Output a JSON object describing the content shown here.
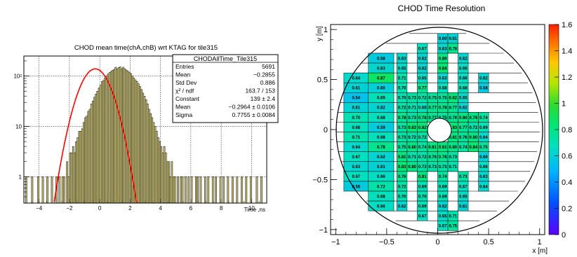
{
  "chart_data": [
    {
      "type": "histogram",
      "title": "CHOD mean time(chA,chB) wrt KTAG for tile315",
      "xlabel": "Time ,ns",
      "ylabel": "",
      "y_scale": "log",
      "xlim": [
        -5,
        11
      ],
      "ylim": [
        0.3,
        250
      ],
      "x_ticks": [
        "−4",
        "−2",
        "0",
        "2",
        "4",
        "6",
        "8",
        "10"
      ],
      "y_ticks": [
        "1",
        "10",
        "10²"
      ],
      "grid": true,
      "bin_width": 0.1,
      "bin_start": -5,
      "counts": [
        0,
        1,
        0,
        0,
        0,
        1,
        0,
        0,
        0,
        1,
        0,
        0,
        1,
        0,
        0,
        1,
        0,
        0,
        1,
        0,
        0,
        1,
        0,
        1,
        0,
        1,
        1,
        0,
        2,
        1,
        3,
        3,
        4,
        3,
        5,
        6,
        8,
        8,
        9,
        12,
        15,
        16,
        20,
        22,
        28,
        32,
        38,
        44,
        50,
        58,
        66,
        78,
        82,
        92,
        100,
        110,
        118,
        124,
        130,
        136,
        150,
        140,
        148,
        152,
        138,
        150,
        140,
        132,
        126,
        118,
        112,
        100,
        92,
        84,
        78,
        70,
        62,
        54,
        46,
        40,
        34,
        28,
        22,
        18,
        15,
        12,
        10,
        8,
        6,
        5,
        4,
        3,
        4,
        3,
        2,
        2,
        1,
        2,
        1,
        1,
        0,
        1,
        0,
        1,
        1,
        0,
        1,
        0,
        1,
        0,
        1,
        0,
        0,
        1,
        1,
        0,
        1,
        0,
        0,
        1,
        0,
        1,
        0,
        0,
        1,
        0,
        1,
        0,
        0,
        1,
        0,
        1,
        0,
        0,
        1,
        0,
        0,
        1,
        0,
        0,
        1,
        0,
        0,
        1,
        0,
        0,
        1,
        0,
        0,
        1,
        0,
        0,
        0,
        1,
        0,
        0,
        1,
        0,
        0,
        0
      ],
      "fit": {
        "type": "gaussian",
        "constant": 139,
        "mean": -0.2964,
        "sigma": 0.7755
      },
      "fill_color": "#c8bf78",
      "fit_color": "#ff0000",
      "stats_box": {
        "name": "CHODAllTime_Tile315",
        "rows": [
          {
            "label": "Entries",
            "value": "5691"
          },
          {
            "label": "Mean",
            "value": "−0.2855"
          },
          {
            "label": "Std Dev",
            "value": "0.886"
          },
          {
            "label": "χ² / ndf",
            "value": "163.7 / 153"
          },
          {
            "label": "Constant",
            "value": "139 ± 2.4"
          },
          {
            "label": "Mean",
            "value": "−0.2964 ± 0.0106"
          },
          {
            "label": "Sigma",
            "value": "0.7755 ± 0.0084"
          }
        ]
      }
    },
    {
      "type": "heatmap",
      "title": "CHOD Time Resolution",
      "xlabel": "x [m]",
      "ylabel": "y [m]",
      "xlim": [
        -1.05,
        1.05
      ],
      "ylim": [
        -1.05,
        1.05
      ],
      "x_ticks": [
        "−1",
        "−0.5",
        "0",
        "0.5",
        "1"
      ],
      "y_ticks": [
        "−1",
        "−0.5",
        "0",
        "0.5",
        "1"
      ],
      "colorbar": {
        "min": 0,
        "max": 1.6,
        "ticks": [
          "0",
          "0.2",
          "0.4",
          "0.6",
          "0.8",
          "1",
          "1.2",
          "1.4",
          "1.6"
        ]
      },
      "columns_x": [
        -0.85,
        -0.7,
        -0.5,
        -0.4,
        -0.3,
        -0.2,
        -0.1,
        0.0,
        0.1,
        0.2,
        0.3,
        0.4,
        0.5
      ],
      "cells": [
        {
          "row": 0,
          "col": 7,
          "label": "0.60"
        },
        {
          "row": 0,
          "col": 8,
          "label": "0.61"
        },
        {
          "row": 1,
          "col": 5,
          "label": "0.67"
        },
        {
          "row": 1,
          "col": 7,
          "label": "0.63"
        },
        {
          "row": 1,
          "col": 8,
          "label": "0.78"
        },
        {
          "row": 2,
          "col": 2,
          "label": "0.58"
        },
        {
          "row": 2,
          "col": 3,
          "label": "0.63"
        },
        {
          "row": 2,
          "col": 5,
          "label": "0.62"
        },
        {
          "row": 2,
          "col": 7,
          "label": "0.80"
        },
        {
          "row": 2,
          "col": 9,
          "label": "0.62"
        },
        {
          "row": 3,
          "col": 2,
          "label": "0.63"
        },
        {
          "row": 3,
          "col": 3,
          "label": "0.65"
        },
        {
          "row": 3,
          "col": 5,
          "label": "0.62"
        },
        {
          "row": 3,
          "col": 7,
          "label": "0.84"
        },
        {
          "row": 3,
          "col": 9,
          "label": "0.66"
        },
        {
          "row": 4,
          "col": 0,
          "label": "0.64"
        },
        {
          "row": 4,
          "col": 2,
          "label": "0.87"
        },
        {
          "row": 4,
          "col": 3,
          "label": "0.71"
        },
        {
          "row": 4,
          "col": 5,
          "label": "0.65"
        },
        {
          "row": 4,
          "col": 7,
          "label": "0.63"
        },
        {
          "row": 4,
          "col": 9,
          "label": "0.66"
        },
        {
          "row": 4,
          "col": 11,
          "label": "0.62"
        },
        {
          "row": 5,
          "col": 0,
          "label": "0.61"
        },
        {
          "row": 5,
          "col": 2,
          "label": "0.60"
        },
        {
          "row": 5,
          "col": 3,
          "label": "0.70"
        },
        {
          "row": 5,
          "col": 5,
          "label": "0.77"
        },
        {
          "row": 5,
          "col": 7,
          "label": "0.68"
        },
        {
          "row": 5,
          "col": 9,
          "label": "0.68"
        },
        {
          "row": 5,
          "col": 11,
          "label": "0.58"
        },
        {
          "row": 6,
          "col": 0,
          "label": "0.54"
        },
        {
          "row": 6,
          "col": 2,
          "label": "0.69"
        },
        {
          "row": 6,
          "col": 3,
          "label": "0.70"
        },
        {
          "row": 6,
          "col": 4,
          "label": "0.73"
        },
        {
          "row": 6,
          "col": 5,
          "label": "0.72"
        },
        {
          "row": 6,
          "col": 6,
          "label": "0.75"
        },
        {
          "row": 6,
          "col": 7,
          "label": "0.75"
        },
        {
          "row": 6,
          "col": 8,
          "label": "0.82"
        },
        {
          "row": 6,
          "col": 9,
          "label": "0.65"
        },
        {
          "row": 7,
          "col": 0,
          "label": "0.61"
        },
        {
          "row": 7,
          "col": 2,
          "label": "0.62"
        },
        {
          "row": 7,
          "col": 3,
          "label": "0.72"
        },
        {
          "row": 7,
          "col": 4,
          "label": "0.71"
        },
        {
          "row": 7,
          "col": 5,
          "label": "0.68"
        },
        {
          "row": 7,
          "col": 6,
          "label": "0.77"
        },
        {
          "row": 7,
          "col": 7,
          "label": "0.78"
        },
        {
          "row": 7,
          "col": 8,
          "label": "0.77"
        },
        {
          "row": 7,
          "col": 9,
          "label": "0.62"
        },
        {
          "row": 8,
          "col": 0,
          "label": "0.70"
        },
        {
          "row": 8,
          "col": 2,
          "label": "0.68"
        },
        {
          "row": 8,
          "col": 3,
          "label": "0.78"
        },
        {
          "row": 8,
          "col": 4,
          "label": "0.73"
        },
        {
          "row": 8,
          "col": 5,
          "label": "0.78"
        },
        {
          "row": 8,
          "col": 6,
          "label": "0.77"
        },
        {
          "row": 8,
          "col": 7,
          "label": "0.75"
        },
        {
          "row": 8,
          "col": 8,
          "label": "0.76"
        },
        {
          "row": 8,
          "col": 9,
          "label": "0.80"
        },
        {
          "row": 8,
          "col": 10,
          "label": "0.79"
        },
        {
          "row": 8,
          "col": 11,
          "label": "0.74"
        },
        {
          "row": 9,
          "col": 0,
          "label": "0.68"
        },
        {
          "row": 9,
          "col": 2,
          "label": "0.59"
        },
        {
          "row": 9,
          "col": 3,
          "label": "0.73"
        },
        {
          "row": 9,
          "col": 4,
          "label": "0.83"
        },
        {
          "row": 9,
          "col": 5,
          "label": "0.82"
        },
        {
          "row": 9,
          "col": 8,
          "label": "0.83"
        },
        {
          "row": 9,
          "col": 9,
          "label": "0.77"
        },
        {
          "row": 9,
          "col": 10,
          "label": "0.72"
        },
        {
          "row": 9,
          "col": 11,
          "label": "0.69"
        },
        {
          "row": 10,
          "col": 0,
          "label": "0.71"
        },
        {
          "row": 10,
          "col": 2,
          "label": "0.68"
        },
        {
          "row": 10,
          "col": 3,
          "label": "0.73"
        },
        {
          "row": 10,
          "col": 4,
          "label": "0.72"
        },
        {
          "row": 10,
          "col": 5,
          "label": "0.72"
        },
        {
          "row": 10,
          "col": 8,
          "label": "0.81"
        },
        {
          "row": 10,
          "col": 9,
          "label": "0.76"
        },
        {
          "row": 10,
          "col": 10,
          "label": "0.80"
        },
        {
          "row": 10,
          "col": 11,
          "label": "0.64"
        },
        {
          "row": 11,
          "col": 0,
          "label": "0.64"
        },
        {
          "row": 11,
          "col": 2,
          "label": "0.78"
        },
        {
          "row": 11,
          "col": 3,
          "label": "0.75"
        },
        {
          "row": 11,
          "col": 4,
          "label": "0.80"
        },
        {
          "row": 11,
          "col": 5,
          "label": "0.74"
        },
        {
          "row": 11,
          "col": 6,
          "label": "0.81"
        },
        {
          "row": 11,
          "col": 7,
          "label": "0.81"
        },
        {
          "row": 11,
          "col": 8,
          "label": "0.80"
        },
        {
          "row": 11,
          "col": 9,
          "label": "0.74"
        },
        {
          "row": 11,
          "col": 10,
          "label": "0.84"
        },
        {
          "row": 11,
          "col": 11,
          "label": "0.75"
        },
        {
          "row": 12,
          "col": 0,
          "label": "0.67"
        },
        {
          "row": 12,
          "col": 2,
          "label": "0.62"
        },
        {
          "row": 12,
          "col": 3,
          "label": "0.81"
        },
        {
          "row": 12,
          "col": 4,
          "label": "0.71"
        },
        {
          "row": 12,
          "col": 5,
          "label": "0.72"
        },
        {
          "row": 12,
          "col": 6,
          "label": "0.76"
        },
        {
          "row": 12,
          "col": 7,
          "label": "0.78"
        },
        {
          "row": 12,
          "col": 8,
          "label": "0.73"
        },
        {
          "row": 12,
          "col": 11,
          "label": "0.60"
        },
        {
          "row": 13,
          "col": 0,
          "label": "0.63"
        },
        {
          "row": 13,
          "col": 2,
          "label": "0.61"
        },
        {
          "row": 13,
          "col": 3,
          "label": "0.83"
        },
        {
          "row": 13,
          "col": 4,
          "label": "0.80"
        },
        {
          "row": 13,
          "col": 5,
          "label": "0.73"
        },
        {
          "row": 13,
          "col": 6,
          "label": "0.73"
        },
        {
          "row": 13,
          "col": 7,
          "label": "0.73"
        },
        {
          "row": 13,
          "col": 8,
          "label": "0.71"
        },
        {
          "row": 13,
          "col": 11,
          "label": "0.66"
        },
        {
          "row": 14,
          "col": 0,
          "label": "0.67"
        },
        {
          "row": 14,
          "col": 2,
          "label": "0.66"
        },
        {
          "row": 14,
          "col": 3,
          "label": "0.76"
        },
        {
          "row": 14,
          "col": 5,
          "label": "0.81"
        },
        {
          "row": 14,
          "col": 7,
          "label": "0.74"
        },
        {
          "row": 14,
          "col": 9,
          "label": "0.73"
        },
        {
          "row": 14,
          "col": 11,
          "label": "0.63"
        },
        {
          "row": 15,
          "col": 0,
          "label": "0.58"
        },
        {
          "row": 15,
          "col": 2,
          "label": "0.72"
        },
        {
          "row": 15,
          "col": 3,
          "label": "0.72"
        },
        {
          "row": 15,
          "col": 5,
          "label": "0.69"
        },
        {
          "row": 15,
          "col": 7,
          "label": "0.69"
        },
        {
          "row": 15,
          "col": 9,
          "label": "0.67"
        },
        {
          "row": 15,
          "col": 11,
          "label": "0.64"
        },
        {
          "row": 16,
          "col": 2,
          "label": "0.68"
        },
        {
          "row": 16,
          "col": 3,
          "label": "0.70"
        },
        {
          "row": 16,
          "col": 5,
          "label": "0.70"
        },
        {
          "row": 16,
          "col": 7,
          "label": "0.69"
        },
        {
          "row": 16,
          "col": 9,
          "label": "0.65"
        },
        {
          "row": 17,
          "col": 2,
          "label": "0.66"
        },
        {
          "row": 17,
          "col": 3,
          "label": "0.62"
        },
        {
          "row": 17,
          "col": 5,
          "label": "0.69"
        },
        {
          "row": 17,
          "col": 7,
          "label": "0.62"
        },
        {
          "row": 17,
          "col": 9,
          "label": "0.61"
        },
        {
          "row": 18,
          "col": 5,
          "label": "0.67"
        },
        {
          "row": 18,
          "col": 7,
          "label": "0.65"
        },
        {
          "row": 18,
          "col": 8,
          "label": "0.71"
        },
        {
          "row": 19,
          "col": 7,
          "label": "0.67"
        },
        {
          "row": 19,
          "col": 8,
          "label": "0.75"
        }
      ]
    }
  ]
}
